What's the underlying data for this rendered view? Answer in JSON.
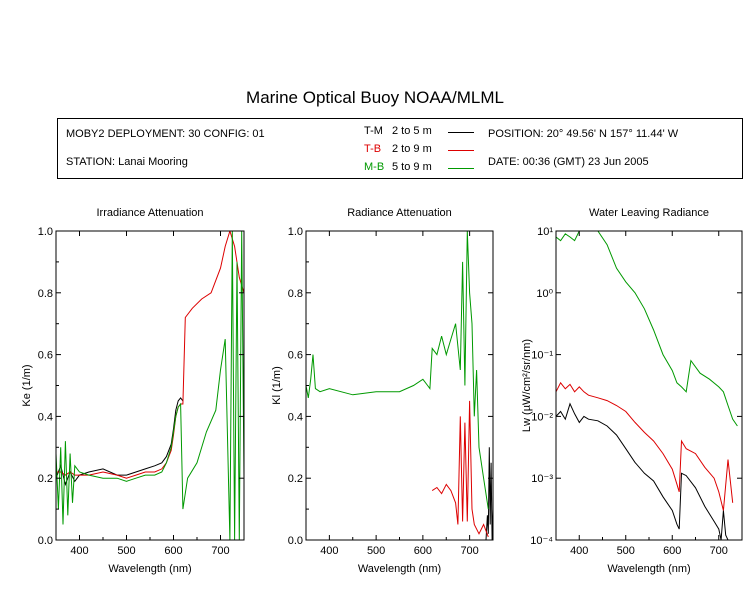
{
  "title": "Marine Optical Buoy NOAA/MLML",
  "info": {
    "deployment": "MOBY2 DEPLOYMENT: 30 CONFIG: 01",
    "station": "STATION: Lanai Mooring",
    "position": "POSITION: 20° 49.56' N   157° 11.44' W",
    "date": "DATE: 00:36 (GMT) 23 Jun 2005"
  },
  "legend": [
    {
      "code": "T-M",
      "range": "2 to 5  m",
      "color": "#000000"
    },
    {
      "code": "T-B",
      "range": "2 to 9  m",
      "color": "#dd0000"
    },
    {
      "code": "M-B",
      "range": "5 to 9  m",
      "color": "#009900"
    }
  ],
  "colors": {
    "T-M": "#000000",
    "T-B": "#dd0000",
    "M-B": "#009900"
  },
  "chart_data": [
    {
      "type": "line",
      "title": "Irradiance Attenuation",
      "xlabel": "Wavelength (nm)",
      "ylabel": "Ke  (1/m)",
      "xlim": [
        350,
        750
      ],
      "ylim": [
        0,
        1
      ],
      "xticks": [
        400,
        500,
        600,
        700
      ],
      "yticks": [
        "0.0",
        "0.2",
        "0.4",
        "0.6",
        "0.8",
        "1.0"
      ],
      "series": [
        {
          "name": "T-M",
          "x": [
            350,
            360,
            370,
            380,
            390,
            400,
            420,
            450,
            480,
            500,
            520,
            540,
            560,
            575,
            585,
            595,
            600,
            605,
            610,
            615,
            620
          ],
          "y": [
            0.2,
            0.24,
            0.18,
            0.22,
            0.19,
            0.21,
            0.22,
            0.23,
            0.21,
            0.21,
            0.22,
            0.23,
            0.24,
            0.25,
            0.27,
            0.31,
            0.36,
            0.42,
            0.45,
            0.46,
            0.45
          ]
        },
        {
          "name": "T-B",
          "x": [
            350,
            360,
            370,
            380,
            390,
            400,
            420,
            450,
            480,
            500,
            520,
            540,
            560,
            575,
            585,
            595,
            600,
            605,
            610,
            615,
            620,
            625,
            640,
            660,
            680,
            690,
            700,
            710,
            720,
            730,
            740,
            750
          ],
          "y": [
            0.22,
            0.22,
            0.21,
            0.22,
            0.21,
            0.21,
            0.21,
            0.22,
            0.21,
            0.2,
            0.21,
            0.22,
            0.22,
            0.23,
            0.25,
            0.29,
            0.34,
            0.4,
            0.43,
            0.44,
            0.44,
            0.72,
            0.75,
            0.78,
            0.8,
            0.84,
            0.88,
            0.95,
            1.0,
            0.95,
            0.85,
            0.8
          ]
        },
        {
          "name": "M-B",
          "x": [
            350,
            355,
            360,
            365,
            370,
            375,
            380,
            385,
            390,
            400,
            420,
            450,
            480,
            500,
            520,
            540,
            560,
            575,
            585,
            595,
            600,
            605,
            610,
            615,
            620,
            630,
            650,
            670,
            690,
            700,
            710,
            720,
            725,
            730,
            735,
            740,
            745,
            750
          ],
          "y": [
            0.28,
            0.1,
            0.3,
            0.05,
            0.32,
            0.08,
            0.28,
            0.12,
            0.24,
            0.22,
            0.21,
            0.2,
            0.2,
            0.19,
            0.2,
            0.21,
            0.21,
            0.22,
            0.25,
            0.3,
            0.35,
            0.4,
            0.43,
            0.44,
            0.1,
            0.2,
            0.25,
            0.35,
            0.42,
            0.55,
            0.65,
            0.0,
            1.0,
            0.0,
            0.9,
            0.0,
            1.0,
            0.2
          ]
        }
      ]
    },
    {
      "type": "line",
      "title": "Radiance Attenuation",
      "xlabel": "Wavelength (nm)",
      "ylabel": "Kl  (1/m)",
      "xlim": [
        350,
        750
      ],
      "ylim": [
        0,
        1
      ],
      "xticks": [
        400,
        500,
        600,
        700
      ],
      "yticks": [
        "0.0",
        "0.2",
        "0.4",
        "0.6",
        "0.8",
        "1.0"
      ],
      "series": [
        {
          "name": "T-M",
          "x": [
            735,
            738,
            740,
            742,
            744,
            746,
            748,
            750
          ],
          "y": [
            0.0,
            0.08,
            0.02,
            0.3,
            0.05,
            0.25,
            0.0,
            0.1
          ]
        },
        {
          "name": "T-B",
          "x": [
            620,
            630,
            640,
            650,
            660,
            670,
            675,
            680,
            685,
            690,
            695,
            700,
            705,
            710,
            720,
            730,
            740
          ],
          "y": [
            0.16,
            0.17,
            0.15,
            0.18,
            0.16,
            0.12,
            0.05,
            0.4,
            0.06,
            0.38,
            0.06,
            0.45,
            0.1,
            0.05,
            0.02,
            0.05,
            0.01
          ]
        },
        {
          "name": "M-B",
          "x": [
            350,
            355,
            360,
            365,
            370,
            380,
            400,
            450,
            500,
            550,
            580,
            600,
            610,
            615,
            620,
            630,
            640,
            650,
            660,
            670,
            680,
            685,
            690,
            695,
            700,
            705,
            710,
            715,
            720,
            730,
            740
          ],
          "y": [
            0.5,
            0.46,
            0.52,
            0.6,
            0.49,
            0.48,
            0.49,
            0.47,
            0.48,
            0.48,
            0.5,
            0.52,
            0.5,
            0.49,
            0.62,
            0.6,
            0.66,
            0.6,
            0.65,
            0.7,
            0.55,
            0.9,
            0.5,
            1.0,
            0.8,
            0.7,
            0.4,
            0.55,
            0.3,
            0.2,
            0.1
          ]
        }
      ]
    },
    {
      "type": "line",
      "title": "Water Leaving Radiance",
      "xlabel": "Wavelength (nm)",
      "ylabel": "Lw  (µW/cm²/sr/nm)",
      "xlim": [
        350,
        750
      ],
      "ylim": [
        0.0001,
        10
      ],
      "yscale": "log",
      "xticks": [
        400,
        500,
        600,
        700
      ],
      "yticks": [
        "10⁻⁴",
        "10⁻³",
        "10⁻²",
        "10⁻¹",
        "10⁰",
        "10¹"
      ],
      "series": [
        {
          "name": "T-M",
          "x": [
            350,
            360,
            370,
            380,
            390,
            400,
            410,
            420,
            440,
            460,
            480,
            500,
            520,
            540,
            560,
            580,
            600,
            610,
            615,
            620,
            630,
            650,
            670,
            690,
            700,
            705,
            710,
            715,
            720
          ],
          "y": [
            0.01,
            0.012,
            0.009,
            0.016,
            0.011,
            0.008,
            0.01,
            0.009,
            0.0085,
            0.007,
            0.005,
            0.003,
            0.0018,
            0.0012,
            0.0009,
            0.0005,
            0.0003,
            0.00018,
            0.00015,
            0.0012,
            0.0011,
            0.0007,
            0.00035,
            0.0002,
            0.00015,
            0.0001,
            0.0003,
            0.00012,
            0.0001
          ]
        },
        {
          "name": "T-B",
          "x": [
            350,
            360,
            370,
            380,
            390,
            400,
            410,
            420,
            440,
            460,
            480,
            500,
            520,
            540,
            560,
            580,
            600,
            610,
            615,
            620,
            630,
            650,
            670,
            690,
            700,
            710,
            720,
            730
          ],
          "y": [
            0.025,
            0.035,
            0.028,
            0.033,
            0.025,
            0.03,
            0.025,
            0.022,
            0.02,
            0.018,
            0.015,
            0.012,
            0.008,
            0.0055,
            0.004,
            0.0025,
            0.0014,
            0.0008,
            0.0006,
            0.004,
            0.003,
            0.0025,
            0.0015,
            0.001,
            0.0006,
            0.0003,
            0.002,
            0.0004
          ]
        },
        {
          "name": "M-B",
          "x": [
            350,
            360,
            370,
            380,
            390,
            400,
            420,
            440,
            460,
            480,
            500,
            520,
            540,
            560,
            580,
            600,
            610,
            620,
            630,
            640,
            660,
            680,
            700,
            710,
            720,
            730,
            740
          ],
          "y": [
            8,
            7,
            9,
            8,
            7,
            10,
            10,
            10,
            6,
            2.5,
            1.5,
            1.0,
            0.55,
            0.25,
            0.1,
            0.055,
            0.035,
            0.03,
            0.025,
            0.08,
            0.05,
            0.04,
            0.03,
            0.025,
            0.015,
            0.009,
            0.007
          ]
        }
      ]
    }
  ]
}
